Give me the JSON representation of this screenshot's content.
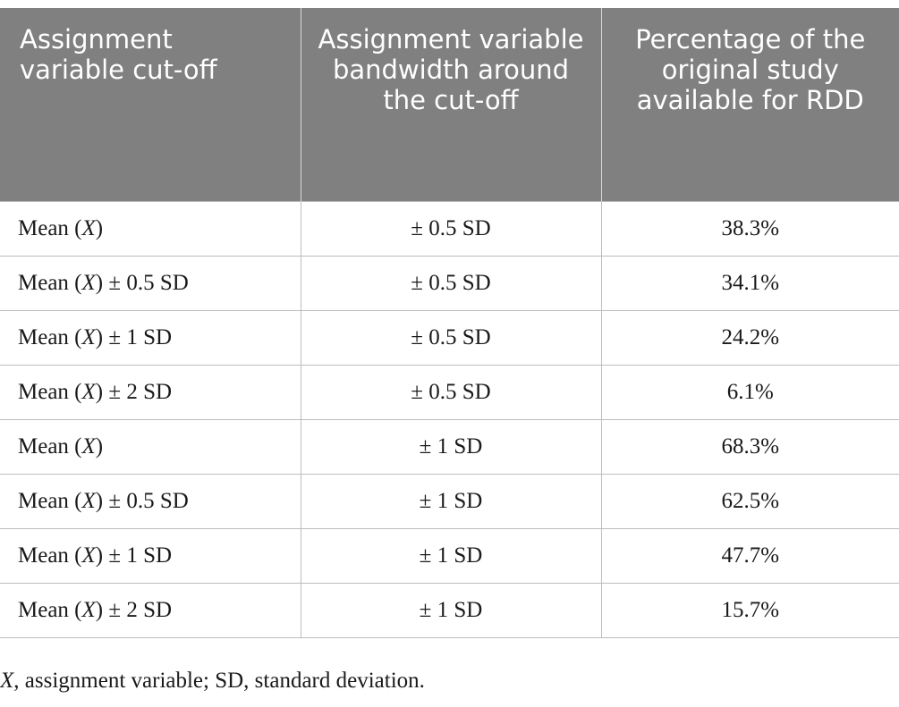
{
  "table": {
    "headers": [
      "Assignment variable cut-off",
      "Assignment variable bandwidth around the cut-off",
      "Percentage of the original study available for RDD"
    ],
    "rows": [
      {
        "cutoff_prefix": "Mean (",
        "cutoff_var": "X",
        "cutoff_suffix": ")",
        "bandwidth": "± 0.5 SD",
        "percentage": "38.3%"
      },
      {
        "cutoff_prefix": "Mean (",
        "cutoff_var": "X",
        "cutoff_suffix": ") ± 0.5 SD",
        "bandwidth": "± 0.5 SD",
        "percentage": "34.1%"
      },
      {
        "cutoff_prefix": "Mean (",
        "cutoff_var": "X",
        "cutoff_suffix": ") ± 1 SD",
        "bandwidth": "± 0.5 SD",
        "percentage": "24.2%"
      },
      {
        "cutoff_prefix": "Mean (",
        "cutoff_var": "X",
        "cutoff_suffix": ") ± 2 SD",
        "bandwidth": "± 0.5 SD",
        "percentage": "6.1%"
      },
      {
        "cutoff_prefix": "Mean (",
        "cutoff_var": "X",
        "cutoff_suffix": ")",
        "bandwidth": "± 1 SD",
        "percentage": "68.3%"
      },
      {
        "cutoff_prefix": "Mean (",
        "cutoff_var": "X",
        "cutoff_suffix": ") ± 0.5 SD",
        "bandwidth": "± 1 SD",
        "percentage": "62.5%"
      },
      {
        "cutoff_prefix": "Mean (",
        "cutoff_var": "X",
        "cutoff_suffix": ") ± 1 SD",
        "bandwidth": "± 1 SD",
        "percentage": "47.7%"
      },
      {
        "cutoff_prefix": "Mean (",
        "cutoff_var": "X",
        "cutoff_suffix": ") ± 2 SD",
        "bandwidth": "± 1 SD",
        "percentage": "15.7%"
      }
    ]
  },
  "footnote": {
    "var": "X",
    "text": ", assignment variable; SD, standard deviation."
  },
  "colors": {
    "header_bg": "#808080",
    "header_text": "#ffffff",
    "grid_line": "#bdbdbd"
  }
}
